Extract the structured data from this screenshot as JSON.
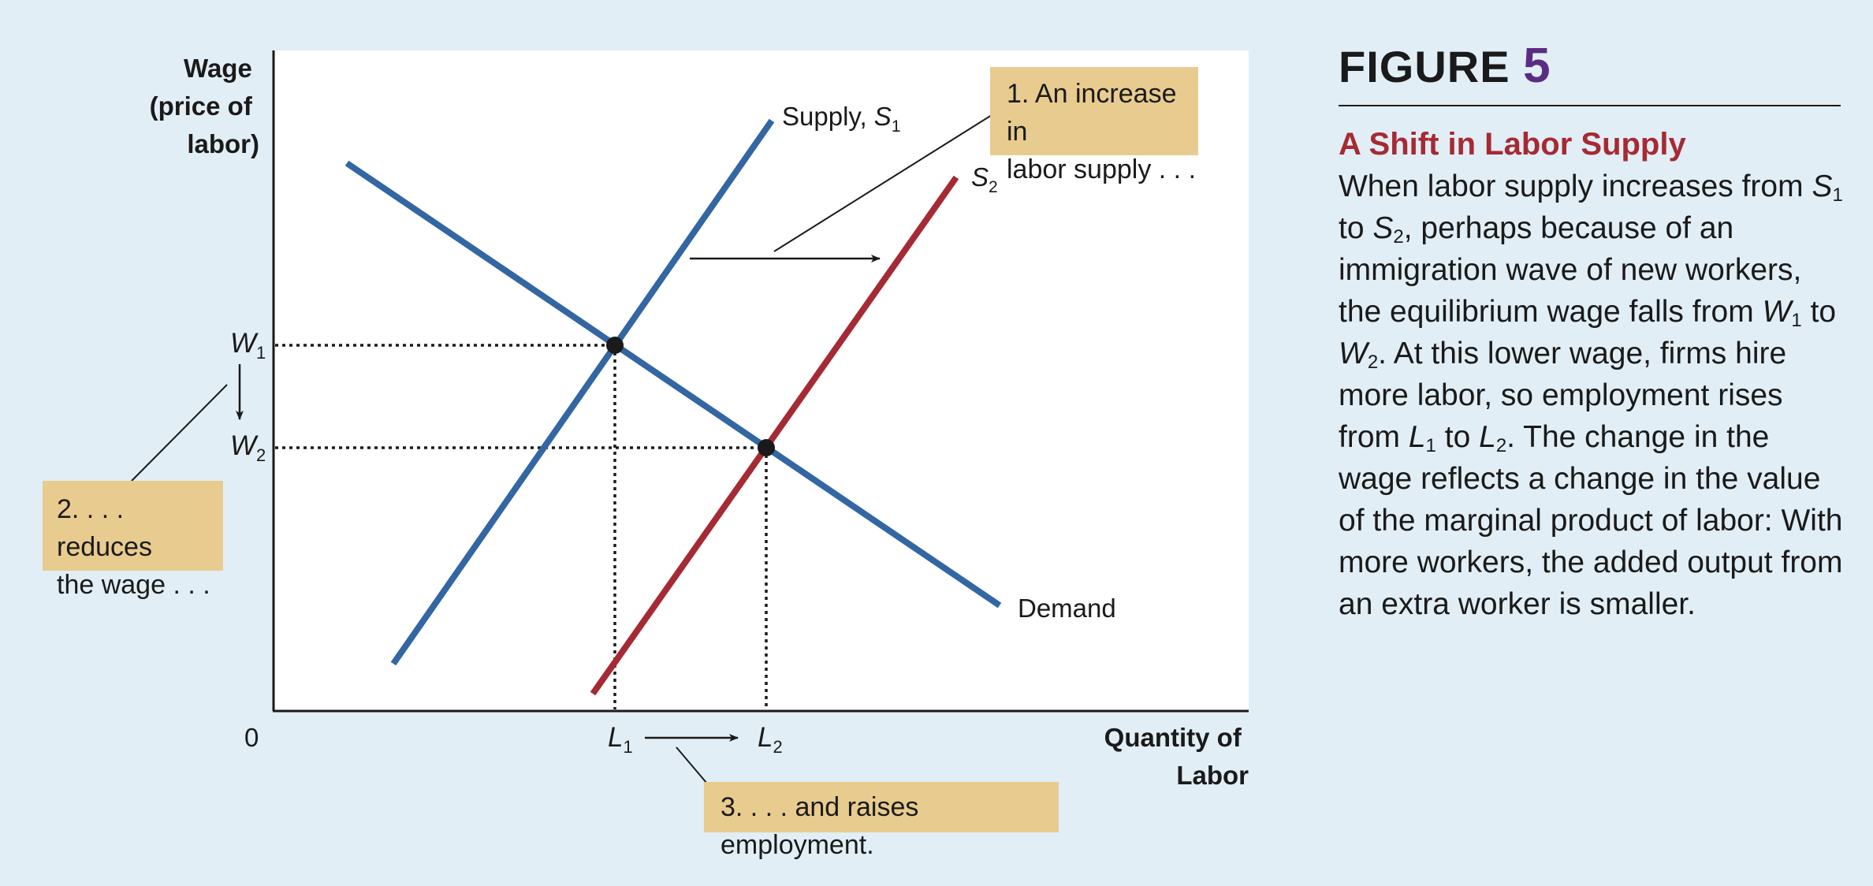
{
  "figure": {
    "label": "FIGURE",
    "number": "5",
    "title": "A Shift in Labor Supply",
    "caption": [
      {
        "t": "When labor supply increases from "
      },
      {
        "t": "S",
        "i": true
      },
      {
        "t": "1",
        "sub": true
      },
      {
        "t": " to "
      },
      {
        "t": "S",
        "i": true
      },
      {
        "t": "2",
        "sub": true
      },
      {
        "t": ", perhaps because of an immigration wave of new workers, the equilibrium wage falls from "
      },
      {
        "t": "W",
        "i": true
      },
      {
        "t": "1",
        "sub": true
      },
      {
        "t": " to "
      },
      {
        "t": "W",
        "i": true
      },
      {
        "t": "2",
        "sub": true
      },
      {
        "t": ". At this lower wage, firms hire more labor, so employment rises from "
      },
      {
        "t": "L",
        "i": true
      },
      {
        "t": "1",
        "sub": true
      },
      {
        "t": " to "
      },
      {
        "t": "L",
        "i": true
      },
      {
        "t": "2",
        "sub": true
      },
      {
        "t": ". The change in the wage reflects a change in the value of the marginal product of labor: With more workers, the added output from an extra worker is smaller."
      }
    ]
  },
  "diagram": {
    "y_axis_label": [
      "Wage",
      "(price of",
      "labor)"
    ],
    "x_axis_label": [
      "Quantity of",
      "Labor"
    ],
    "origin": "0",
    "curves": {
      "supply1_label": "Supply, ",
      "supply1_symbol": "S",
      "supply1_sub": "1",
      "supply2_symbol": "S",
      "supply2_sub": "2",
      "demand_label": "Demand"
    },
    "wage_ticks": [
      {
        "symbol": "W",
        "sub": "1"
      },
      {
        "symbol": "W",
        "sub": "2"
      }
    ],
    "quantity_ticks": [
      {
        "symbol": "L",
        "sub": "1"
      },
      {
        "symbol": "L",
        "sub": "2"
      }
    ],
    "annotations": {
      "a1_line1": "1. An increase in",
      "a1_line2": "labor supply . . .",
      "a2_line1": "2. . . . reduces",
      "a2_line2": "the wage . . .",
      "a3": "3. . . . and raises employment."
    },
    "colors": {
      "background": "#e2eef5",
      "plot_area": "#ffffff",
      "supply1": "#3366a3",
      "demand": "#3366a3",
      "supply2": "#a52a34",
      "annotation_box": "#e8cb8e",
      "figure_number": "#5a2d82",
      "title": "#a52a34"
    }
  }
}
